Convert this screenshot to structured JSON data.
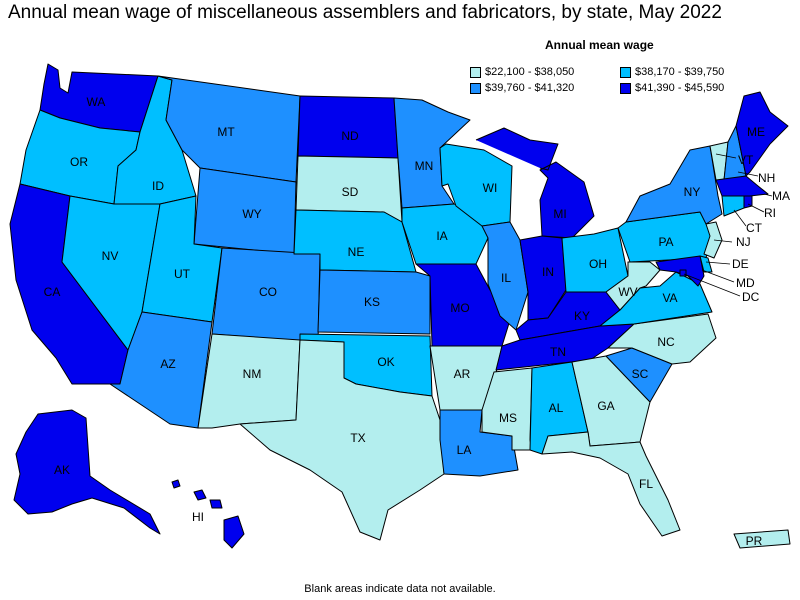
{
  "title": "Annual mean wage of miscellaneous assemblers and fabricators, by state, May 2022",
  "legend": {
    "title": "Annual mean wage",
    "items": [
      {
        "label": "$22,100 - $38,050",
        "color": "#b3eeee"
      },
      {
        "label": "$38,170 - $39,750",
        "color": "#00bfff"
      },
      {
        "label": "$39,760 - $41,320",
        "color": "#1e90ff"
      },
      {
        "label": "$41,390 - $45,590",
        "color": "#0000ee"
      }
    ]
  },
  "footnote": "Blank areas indicate data not available.",
  "states": [
    {
      "abbr": "WA",
      "tier": 3
    },
    {
      "abbr": "OR",
      "tier": 1
    },
    {
      "abbr": "CA",
      "tier": 3
    },
    {
      "abbr": "ID",
      "tier": 1
    },
    {
      "abbr": "NV",
      "tier": 1
    },
    {
      "abbr": "MT",
      "tier": 2
    },
    {
      "abbr": "WY",
      "tier": 2
    },
    {
      "abbr": "UT",
      "tier": 1
    },
    {
      "abbr": "AZ",
      "tier": 2
    },
    {
      "abbr": "CO",
      "tier": 2
    },
    {
      "abbr": "NM",
      "tier": 0
    },
    {
      "abbr": "ND",
      "tier": 3
    },
    {
      "abbr": "SD",
      "tier": 0
    },
    {
      "abbr": "NE",
      "tier": 1
    },
    {
      "abbr": "KS",
      "tier": 2
    },
    {
      "abbr": "OK",
      "tier": 1
    },
    {
      "abbr": "TX",
      "tier": 0
    },
    {
      "abbr": "MN",
      "tier": 2
    },
    {
      "abbr": "IA",
      "tier": 1
    },
    {
      "abbr": "MO",
      "tier": 3
    },
    {
      "abbr": "AR",
      "tier": 0
    },
    {
      "abbr": "LA",
      "tier": 2
    },
    {
      "abbr": "WI",
      "tier": 1
    },
    {
      "abbr": "IL",
      "tier": 2
    },
    {
      "abbr": "MI",
      "tier": 3
    },
    {
      "abbr": "IN",
      "tier": 3
    },
    {
      "abbr": "OH",
      "tier": 1
    },
    {
      "abbr": "KY",
      "tier": 3
    },
    {
      "abbr": "TN",
      "tier": 3
    },
    {
      "abbr": "MS",
      "tier": 0
    },
    {
      "abbr": "AL",
      "tier": 1
    },
    {
      "abbr": "GA",
      "tier": 0
    },
    {
      "abbr": "FL",
      "tier": 0
    },
    {
      "abbr": "SC",
      "tier": 2
    },
    {
      "abbr": "NC",
      "tier": 0
    },
    {
      "abbr": "VA",
      "tier": 1
    },
    {
      "abbr": "WV",
      "tier": 0
    },
    {
      "abbr": "PA",
      "tier": 1
    },
    {
      "abbr": "NY",
      "tier": 2
    },
    {
      "abbr": "VT",
      "tier": 0
    },
    {
      "abbr": "NH",
      "tier": 2
    },
    {
      "abbr": "ME",
      "tier": 3
    },
    {
      "abbr": "MA",
      "tier": 3
    },
    {
      "abbr": "RI",
      "tier": 3
    },
    {
      "abbr": "CT",
      "tier": 1
    },
    {
      "abbr": "NJ",
      "tier": 0
    },
    {
      "abbr": "DE",
      "tier": 1
    },
    {
      "abbr": "MD",
      "tier": 3
    },
    {
      "abbr": "DC",
      "tier": 3
    },
    {
      "abbr": "AK",
      "tier": 3
    },
    {
      "abbr": "HI",
      "tier": 3
    },
    {
      "abbr": "PR",
      "tier": 0
    }
  ]
}
